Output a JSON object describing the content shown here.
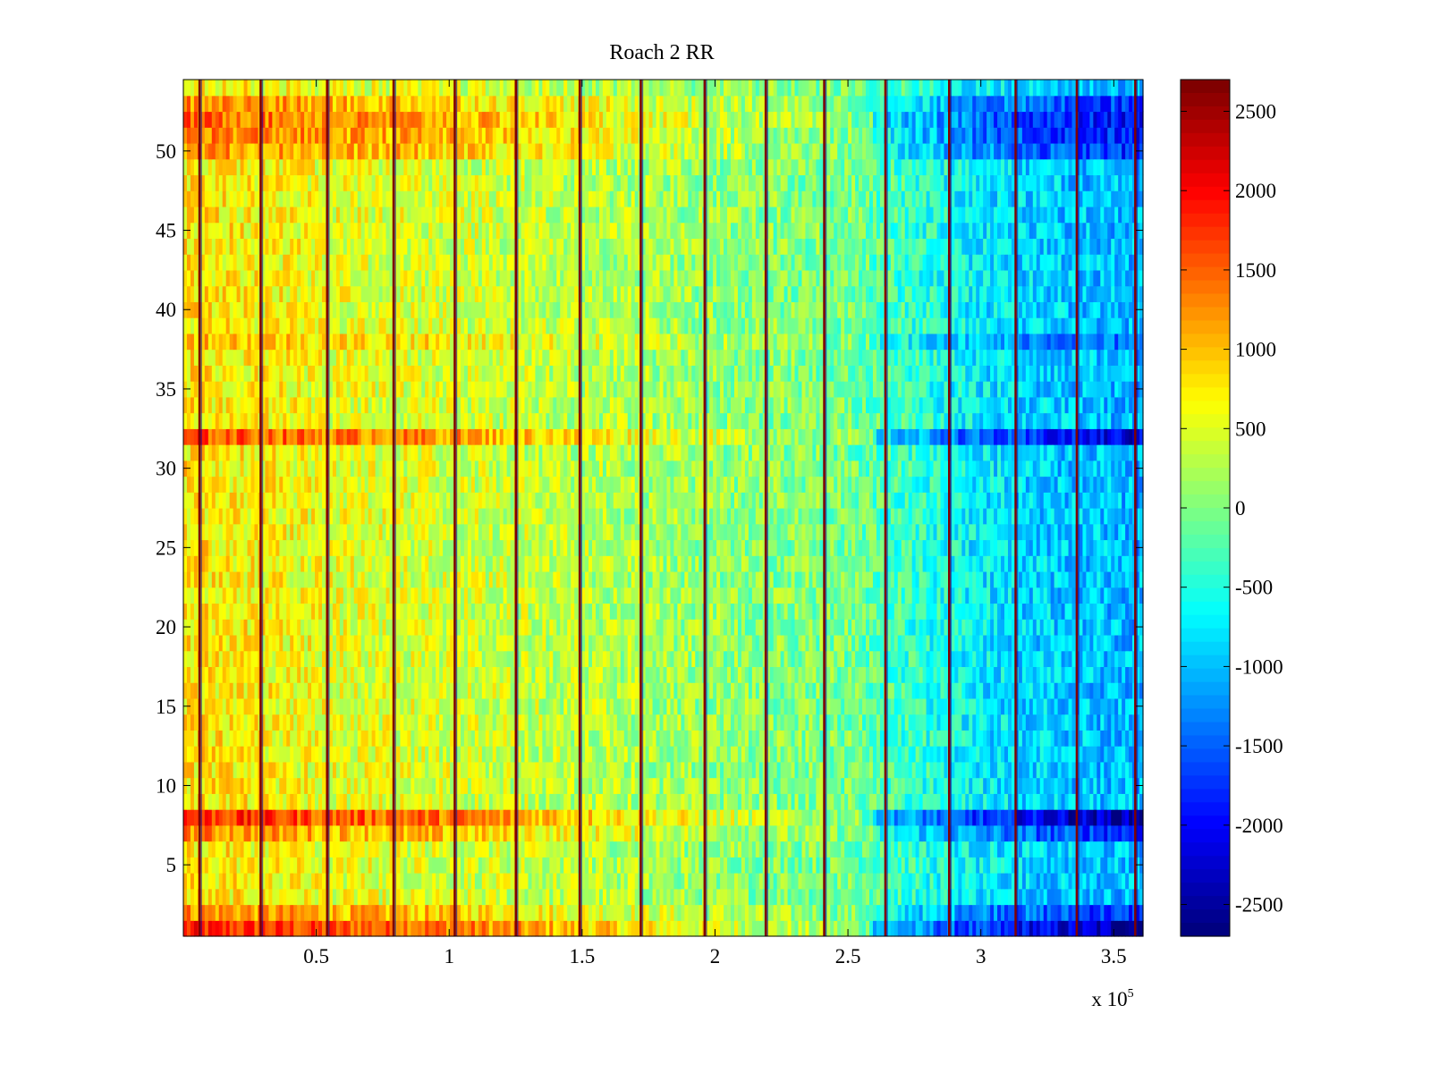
{
  "chart_data": {
    "type": "heatmap",
    "title": "Roach 2 RR",
    "xlabel": "",
    "ylabel": "",
    "x_scale_label": "x 10",
    "x_scale_exponent": "5",
    "xlim": [
      0,
      3.61
    ],
    "ylim": [
      0.5,
      54.5
    ],
    "x_ticks": [
      {
        "value": 0.5,
        "label": "0.5"
      },
      {
        "value": 1,
        "label": "1"
      },
      {
        "value": 1.5,
        "label": "1.5"
      },
      {
        "value": 2,
        "label": "2"
      },
      {
        "value": 2.5,
        "label": "2.5"
      },
      {
        "value": 3,
        "label": "3"
      },
      {
        "value": 3.5,
        "label": "3.5"
      }
    ],
    "y_ticks": [
      {
        "value": 5,
        "label": "5"
      },
      {
        "value": 10,
        "label": "10"
      },
      {
        "value": 15,
        "label": "15"
      },
      {
        "value": 20,
        "label": "20"
      },
      {
        "value": 25,
        "label": "25"
      },
      {
        "value": 30,
        "label": "30"
      },
      {
        "value": 35,
        "label": "35"
      },
      {
        "value": 40,
        "label": "40"
      },
      {
        "value": 45,
        "label": "45"
      },
      {
        "value": 50,
        "label": "50"
      }
    ],
    "rows": 54,
    "colormap": "jet",
    "clim": [
      -2700,
      2700
    ],
    "colorbar_ticks": [
      {
        "value": 2500,
        "label": "2500"
      },
      {
        "value": 2000,
        "label": "2000"
      },
      {
        "value": 1500,
        "label": "1500"
      },
      {
        "value": 1000,
        "label": "1000"
      },
      {
        "value": 500,
        "label": "500"
      },
      {
        "value": 0,
        "label": "0"
      },
      {
        "value": -500,
        "label": "-500"
      },
      {
        "value": -1000,
        "label": "-1000"
      },
      {
        "value": -1500,
        "label": "-1500"
      },
      {
        "value": -2000,
        "label": "-2000"
      },
      {
        "value": -2500,
        "label": "-2500"
      }
    ],
    "trend_x": [
      0,
      0.3,
      0.6,
      1.0,
      1.5,
      2.0,
      2.5,
      2.7,
      3.0,
      3.3,
      3.61
    ],
    "trend_value": [
      800,
      700,
      550,
      450,
      300,
      100,
      -50,
      -350,
      -750,
      -950,
      -1050
    ],
    "hot_rows": [
      {
        "row": 1,
        "delta": 1000
      },
      {
        "row": 2,
        "delta": 500
      },
      {
        "row": 7,
        "delta": 500
      },
      {
        "row": 8,
        "delta": 1000
      },
      {
        "row": 32,
        "delta": 800
      },
      {
        "row": 38,
        "delta": 300
      },
      {
        "row": 50,
        "delta": 500
      },
      {
        "row": 51,
        "delta": 600
      },
      {
        "row": 52,
        "delta": 700
      },
      {
        "row": 53,
        "delta": 500
      }
    ],
    "spike_lines_x": [
      0.06,
      0.29,
      0.54,
      0.79,
      1.02,
      1.25,
      1.49,
      1.72,
      1.96,
      2.19,
      2.41,
      2.64,
      2.88,
      3.13,
      3.36,
      3.58
    ]
  }
}
